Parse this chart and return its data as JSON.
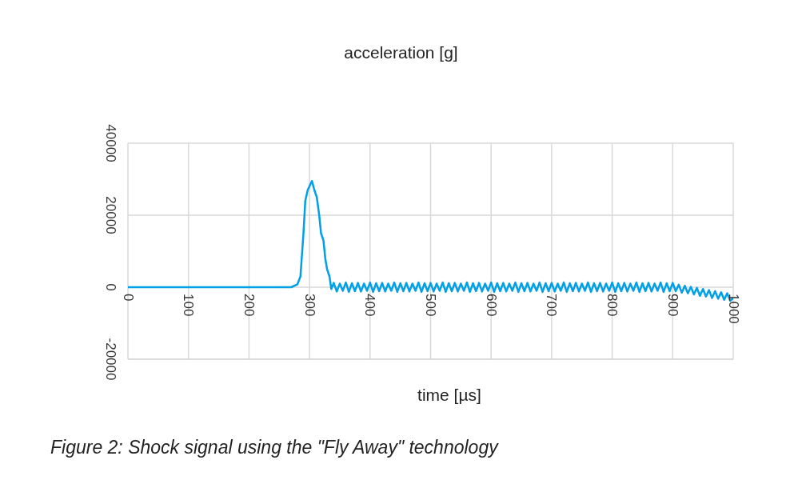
{
  "chart_data": {
    "type": "line",
    "title": "acceleration [g]",
    "xlabel": "time [µs]",
    "annotations": [
      "Figure 2: Shock signal using the \"Fly Away\" technology"
    ],
    "xlim": [
      0,
      1000
    ],
    "xticks": [
      0,
      100,
      200,
      300,
      400,
      500,
      600,
      700,
      800,
      900,
      1000
    ],
    "ylim": [
      -20000,
      40000
    ],
    "yticks": [
      -20000,
      0,
      20000,
      40000
    ],
    "grid": true,
    "legend": false,
    "marker": "none",
    "line_style": "solid",
    "series": [
      {
        "color": "#00a0e9",
        "x": [
          0,
          270,
          280,
          285,
          290,
          293,
          297,
          304,
          308,
          312,
          316,
          319,
          323,
          326,
          329,
          333,
          336,
          340,
          345,
          350,
          355,
          360,
          365,
          370,
          375,
          380,
          385,
          390,
          395,
          400,
          405,
          410,
          415,
          420,
          425,
          430,
          435,
          440,
          445,
          450,
          455,
          460,
          465,
          470,
          475,
          480,
          485,
          490,
          495,
          500,
          505,
          510,
          515,
          520,
          525,
          530,
          535,
          540,
          545,
          550,
          555,
          560,
          565,
          570,
          575,
          580,
          585,
          590,
          595,
          600,
          605,
          610,
          615,
          620,
          625,
          630,
          635,
          640,
          645,
          650,
          655,
          660,
          665,
          670,
          675,
          680,
          685,
          690,
          695,
          700,
          705,
          710,
          715,
          720,
          725,
          730,
          735,
          740,
          745,
          750,
          755,
          760,
          765,
          770,
          775,
          780,
          785,
          790,
          795,
          800,
          805,
          810,
          815,
          820,
          825,
          830,
          835,
          840,
          845,
          850,
          855,
          860,
          865,
          870,
          875,
          880,
          885,
          890,
          895,
          900,
          905,
          910,
          915,
          920,
          925,
          930,
          935,
          940,
          945,
          950,
          955,
          960,
          965,
          970,
          975,
          980,
          985,
          990,
          995,
          1000
        ],
        "values": [
          0,
          0,
          800,
          3000,
          15000,
          24000,
          27000,
          29500,
          27000,
          25000,
          20000,
          15000,
          13000,
          8000,
          5000,
          3000,
          -500,
          1200,
          -1200,
          1000,
          -1000,
          1300,
          -1300,
          1100,
          -1100,
          1200,
          -1200,
          1000,
          -1000,
          1300,
          -1300,
          1100,
          -1100,
          1200,
          -1200,
          1000,
          -1000,
          1300,
          -1300,
          1100,
          -1100,
          1200,
          -1200,
          1000,
          -1000,
          1300,
          -1300,
          1100,
          -1100,
          1200,
          -1200,
          1000,
          -1000,
          1300,
          -1300,
          1100,
          -1100,
          1200,
          -1200,
          1000,
          -1000,
          1300,
          -1300,
          1100,
          -1100,
          1200,
          -1200,
          1000,
          -1000,
          1300,
          -1300,
          1100,
          -1100,
          1200,
          -1200,
          1000,
          -1000,
          1300,
          -1300,
          1100,
          -1100,
          1200,
          -1200,
          1000,
          -1000,
          1300,
          -1300,
          1100,
          -1100,
          1200,
          -1200,
          1000,
          -1000,
          1300,
          -1300,
          1100,
          -1100,
          1200,
          -1200,
          1000,
          -1000,
          1300,
          -1300,
          1100,
          -1100,
          1200,
          -1200,
          1000,
          -1000,
          1300,
          -1300,
          1100,
          -1100,
          1200,
          -1200,
          1000,
          -1000,
          1300,
          -1300,
          1100,
          -1100,
          1200,
          -1200,
          1000,
          -1000,
          1300,
          -1300,
          1100,
          -1100,
          1200,
          -1100,
          700,
          -1500,
          400,
          -1700,
          100,
          -2000,
          -200,
          -2400,
          -500,
          -2600,
          -800,
          -3000,
          -1100,
          -3200,
          -1400,
          -3500,
          -1700,
          -3800,
          -3000
        ]
      }
    ]
  }
}
